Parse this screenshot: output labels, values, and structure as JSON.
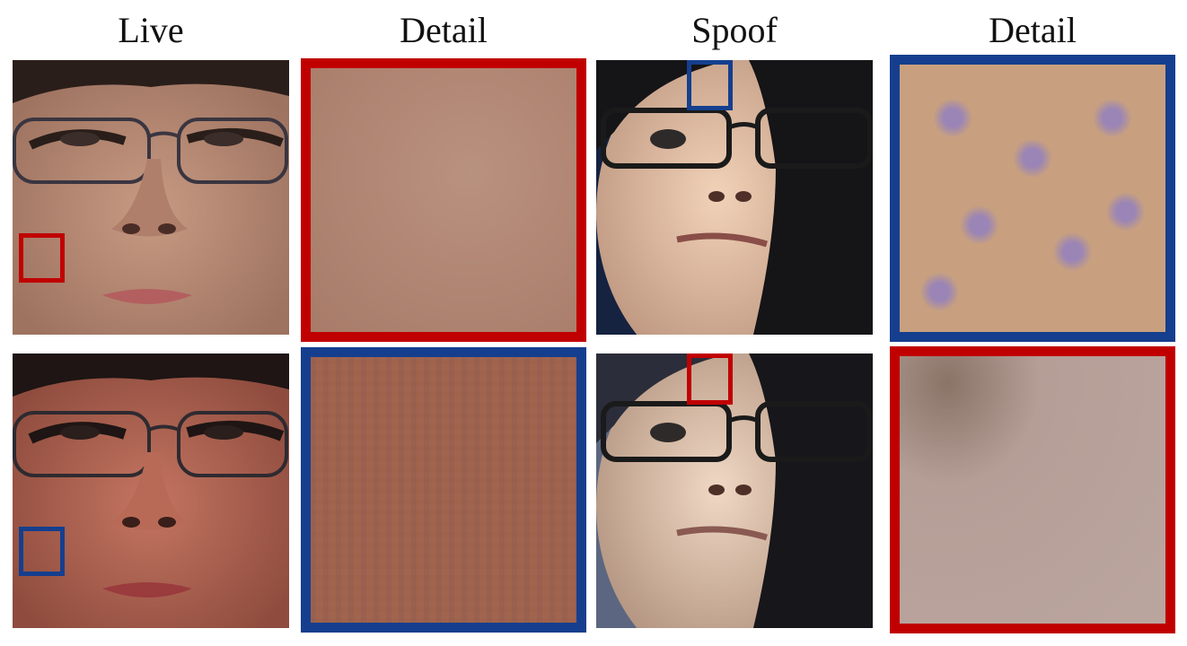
{
  "column_titles": [
    "Live",
    "Detail",
    "Spoof",
    "Detail"
  ],
  "colors": {
    "red_frame": "#c00000",
    "blue_frame": "#153f8e"
  },
  "rows": [
    {
      "live": {
        "description_icon": "live-face-photo",
        "marker_color": "red"
      },
      "live_detail": {
        "frame_color": "red"
      },
      "spoof": {
        "description_icon": "spoof-face-photo",
        "marker_color": "blue"
      },
      "spoof_detail": {
        "frame_color": "blue"
      }
    },
    {
      "live": {
        "description_icon": "live-face-photo",
        "marker_color": "blue"
      },
      "live_detail": {
        "frame_color": "blue"
      },
      "spoof": {
        "description_icon": "spoof-face-photo",
        "marker_color": "red"
      },
      "spoof_detail": {
        "frame_color": "red"
      }
    }
  ]
}
